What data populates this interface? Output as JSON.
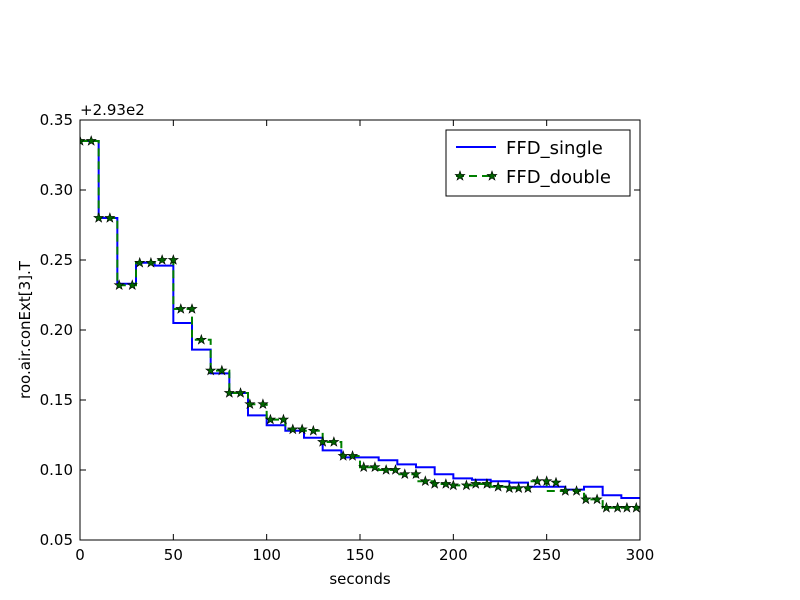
{
  "chart_data": {
    "type": "line",
    "title": "",
    "xlabel": "seconds",
    "ylabel": "roo.air.conExt[3].T",
    "offset_label": "+2.93e2",
    "xlim": [
      0,
      300
    ],
    "ylim": [
      0.05,
      0.35
    ],
    "x_ticks": [
      "0",
      "50",
      "100",
      "150",
      "200",
      "250",
      "300"
    ],
    "y_ticks": [
      "0.05",
      "0.10",
      "0.15",
      "0.20",
      "0.25",
      "0.30",
      "0.35"
    ],
    "grid": false,
    "legend_position": "top-right",
    "series": [
      {
        "name": "FFD_single",
        "color": "#0000ff",
        "style": "solid-step",
        "x": [
          0,
          10,
          20,
          30,
          40,
          50,
          60,
          70,
          80,
          90,
          100,
          110,
          120,
          130,
          140,
          150,
          160,
          170,
          180,
          190,
          200,
          210,
          220,
          230,
          240,
          250,
          260,
          270,
          280,
          290,
          300
        ],
        "y": [
          0.335,
          0.28,
          0.233,
          0.248,
          0.246,
          0.205,
          0.186,
          0.169,
          0.155,
          0.139,
          0.132,
          0.128,
          0.123,
          0.114,
          0.109,
          0.109,
          0.107,
          0.104,
          0.102,
          0.097,
          0.094,
          0.093,
          0.092,
          0.091,
          0.088,
          0.088,
          0.086,
          0.088,
          0.082,
          0.08,
          0.08
        ]
      },
      {
        "name": "FFD_double",
        "color": "#007f00",
        "marker_color": "#006400",
        "style": "dashed-step-star",
        "x": [
          0,
          10,
          20,
          30,
          40,
          50,
          60,
          70,
          80,
          90,
          100,
          110,
          120,
          130,
          140,
          150,
          160,
          170,
          180,
          190,
          200,
          210,
          220,
          230,
          240,
          250,
          260,
          270,
          280,
          290,
          300
        ],
        "y": [
          0.335,
          0.28,
          0.232,
          0.248,
          0.25,
          0.215,
          0.193,
          0.171,
          0.155,
          0.147,
          0.136,
          0.129,
          0.128,
          0.12,
          0.11,
          0.102,
          0.1,
          0.097,
          0.092,
          0.09,
          0.089,
          0.09,
          0.088,
          0.087,
          0.092,
          0.085,
          0.085,
          0.079,
          0.073,
          0.073,
          0.073
        ],
        "markers": [
          [
            0,
            0.335
          ],
          [
            6,
            0.335
          ],
          [
            10,
            0.28
          ],
          [
            16,
            0.28
          ],
          [
            21,
            0.232
          ],
          [
            28,
            0.232
          ],
          [
            32,
            0.248
          ],
          [
            38,
            0.248
          ],
          [
            44,
            0.25
          ],
          [
            50,
            0.25
          ],
          [
            54,
            0.215
          ],
          [
            60,
            0.215
          ],
          [
            65,
            0.193
          ],
          [
            70,
            0.171
          ],
          [
            76,
            0.171
          ],
          [
            80,
            0.155
          ],
          [
            86,
            0.155
          ],
          [
            91,
            0.147
          ],
          [
            98,
            0.147
          ],
          [
            102,
            0.136
          ],
          [
            109,
            0.136
          ],
          [
            114,
            0.129
          ],
          [
            119,
            0.129
          ],
          [
            125,
            0.128
          ],
          [
            130,
            0.12
          ],
          [
            136,
            0.12
          ],
          [
            141,
            0.11
          ],
          [
            146,
            0.11
          ],
          [
            152,
            0.102
          ],
          [
            158,
            0.102
          ],
          [
            164,
            0.1
          ],
          [
            169,
            0.1
          ],
          [
            174,
            0.097
          ],
          [
            180,
            0.097
          ],
          [
            185,
            0.092
          ],
          [
            190,
            0.09
          ],
          [
            196,
            0.09
          ],
          [
            200,
            0.089
          ],
          [
            207,
            0.089
          ],
          [
            212,
            0.09
          ],
          [
            218,
            0.09
          ],
          [
            224,
            0.088
          ],
          [
            230,
            0.087
          ],
          [
            235,
            0.087
          ],
          [
            240,
            0.087
          ],
          [
            245,
            0.092
          ],
          [
            250,
            0.092
          ],
          [
            255,
            0.091
          ],
          [
            260,
            0.085
          ],
          [
            266,
            0.085
          ],
          [
            271,
            0.079
          ],
          [
            277,
            0.079
          ],
          [
            282,
            0.073
          ],
          [
            288,
            0.073
          ],
          [
            293,
            0.073
          ],
          [
            298,
            0.073
          ]
        ]
      }
    ]
  }
}
